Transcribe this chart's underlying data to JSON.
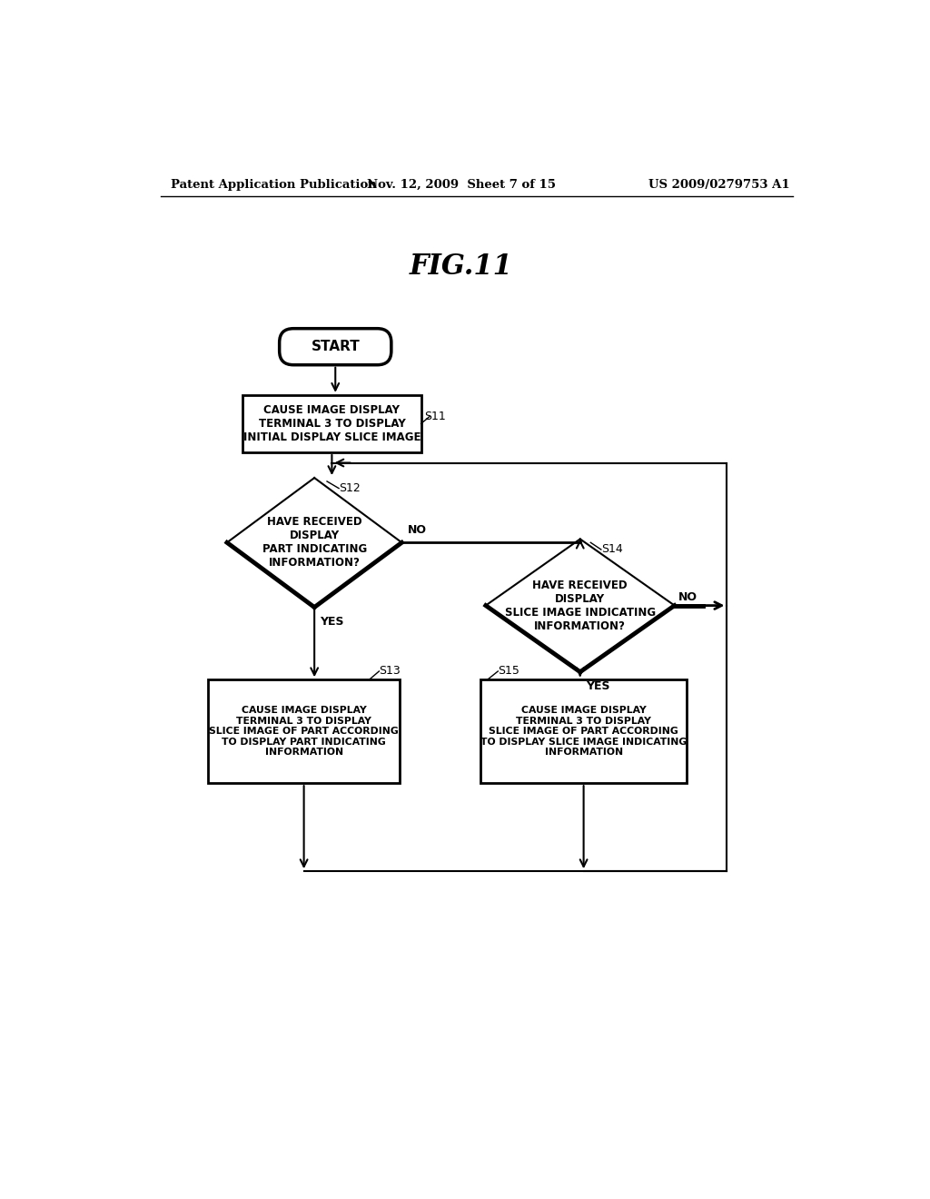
{
  "header_left": "Patent Application Publication",
  "header_mid": "Nov. 12, 2009  Sheet 7 of 15",
  "header_right": "US 2009/0279753 A1",
  "fig_title": "FIG.11",
  "start_label": "START",
  "s11_label": "CAUSE IMAGE DISPLAY\nTERMINAL 3 TO DISPLAY\nINITIAL DISPLAY SLICE IMAGE",
  "s11_tag": "S11",
  "s12_label": "HAVE RECEIVED\nDISPLAY\nPART INDICATING\nINFORMATION?",
  "s12_tag": "S12",
  "s14_label": "HAVE RECEIVED\nDISPLAY\nSLICE IMAGE INDICATING\nINFORMATION?",
  "s14_tag": "S14",
  "s13_label": "CAUSE IMAGE DISPLAY\nTERMINAL 3 TO DISPLAY\nSLICE IMAGE OF PART ACCORDING\nTO DISPLAY PART INDICATING\nINFORMATION",
  "s13_tag": "S13",
  "s15_label": "CAUSE IMAGE DISPLAY\nTERMINAL 3 TO DISPLAY\nSLICE IMAGE OF PART ACCORDING\nTO DISPLAY SLICE IMAGE INDICATING\nINFORMATION",
  "s15_tag": "S15",
  "yes_label": "YES",
  "no_label": "NO",
  "bg_color": "#ffffff"
}
